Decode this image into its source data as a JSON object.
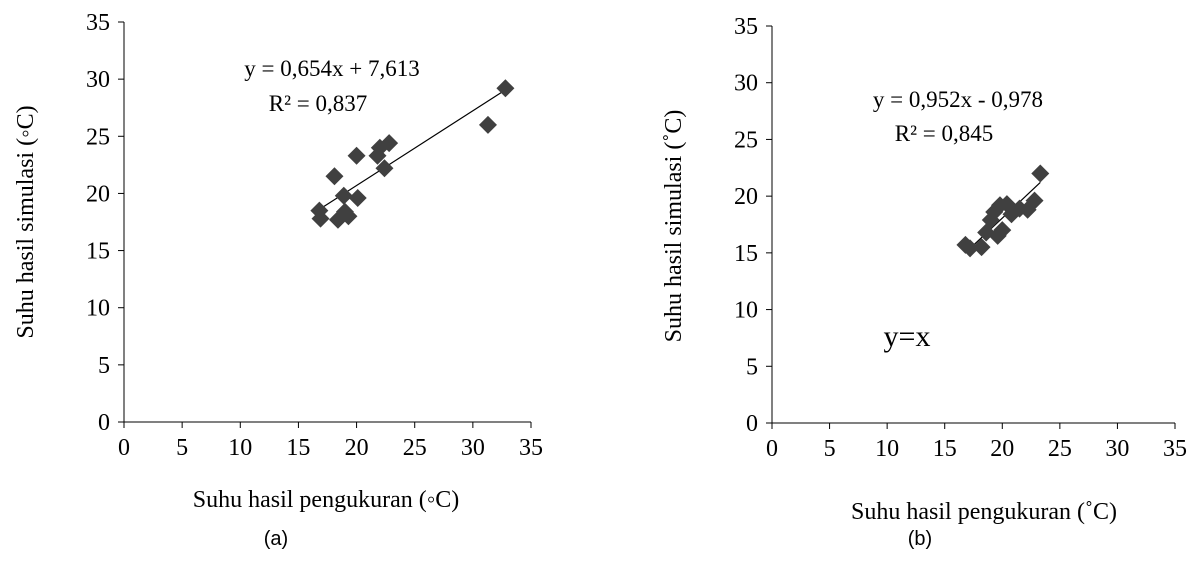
{
  "chart_data": [
    {
      "type": "scatter",
      "xlabel": "Suhu hasil pengukuran (◦C)",
      "ylabel": "Suhu hasil simulasi (◦C)",
      "xlim": [
        0,
        35
      ],
      "ylim": [
        0,
        35
      ],
      "xticks": [
        0,
        5,
        10,
        15,
        20,
        25,
        30,
        35
      ],
      "yticks": [
        0,
        5,
        10,
        15,
        20,
        25,
        30,
        35
      ],
      "grid": false,
      "marker": "diamond",
      "marker_color": "#404040",
      "x": [
        16.8,
        16.9,
        18.1,
        18.4,
        18.9,
        19.0,
        19.3,
        20.0,
        20.1,
        21.8,
        22.0,
        22.4,
        22.8,
        31.3,
        32.8
      ],
      "y": [
        18.5,
        17.8,
        21.5,
        17.7,
        19.8,
        18.4,
        18.0,
        23.3,
        19.6,
        23.3,
        24.0,
        22.2,
        24.4,
        26.0,
        29.2
      ],
      "trendline": {
        "slope": 0.654,
        "intercept": 7.613,
        "x_range": [
          16.8,
          32.8
        ]
      },
      "equation": "y = 0,654x + 7,613",
      "r2": "R² = 0,837",
      "caption": "(a)"
    },
    {
      "type": "scatter",
      "xlabel": "Suhu hasil pengukuran (˚C)",
      "ylabel": "Suhu hasil simulasi (˚C)",
      "xlim": [
        0,
        35
      ],
      "ylim": [
        0,
        35
      ],
      "xticks": [
        0,
        5,
        10,
        15,
        20,
        25,
        30,
        35
      ],
      "yticks": [
        0,
        5,
        10,
        15,
        20,
        25,
        30,
        35
      ],
      "grid": false,
      "marker": "diamond",
      "marker_color": "#404040",
      "x": [
        16.8,
        17.2,
        18.2,
        18.6,
        19.0,
        19.3,
        19.6,
        19.8,
        20.0,
        20.4,
        20.8,
        21.5,
        22.2,
        22.8,
        23.3
      ],
      "y": [
        15.7,
        15.4,
        15.5,
        16.8,
        17.9,
        18.6,
        16.5,
        19.2,
        17.0,
        19.3,
        18.4,
        18.9,
        18.8,
        19.6,
        22.0
      ],
      "trendline": {
        "slope": 0.952,
        "intercept": -0.978,
        "x_range": [
          16.8,
          23.3
        ]
      },
      "equation": "y = 0,952x - 0,978",
      "r2": "R² = 0,845",
      "annotation": "y=x",
      "caption": "(b)"
    }
  ]
}
